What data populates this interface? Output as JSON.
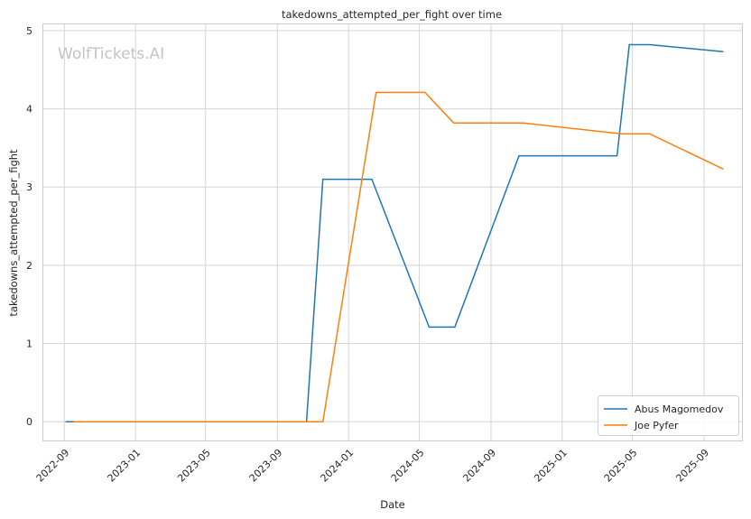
{
  "watermark": "WolfTickets.AI",
  "chart_data": {
    "type": "line",
    "title": "takedowns_attempted_per_fight over time",
    "xlabel": "Date",
    "ylabel": "takedowns_attempted_per_fight",
    "x_ticks": [
      "2022-09",
      "2023-01",
      "2023-05",
      "2023-09",
      "2024-01",
      "2024-05",
      "2024-09",
      "2025-01",
      "2025-05",
      "2025-09"
    ],
    "y_ticks": [
      0,
      1,
      2,
      3,
      4,
      5
    ],
    "xlim": [
      "2022-07-27",
      "2025-11-05"
    ],
    "ylim": [
      -0.24,
      5.08
    ],
    "grid": true,
    "legend_position": "lower-right",
    "series": [
      {
        "name": "Abus Magomedov",
        "color": "#1f77b4",
        "points": [
          {
            "x": "2022-09-03",
            "y": 0
          },
          {
            "x": "2023-10-21",
            "y": 0
          },
          {
            "x": "2023-11-18",
            "y": 3.1
          },
          {
            "x": "2024-02-10",
            "y": 3.1
          },
          {
            "x": "2024-05-18",
            "y": 1.21
          },
          {
            "x": "2024-07-01",
            "y": 1.21
          },
          {
            "x": "2024-10-19",
            "y": 3.4
          },
          {
            "x": "2025-04-05",
            "y": 3.4
          },
          {
            "x": "2025-04-26",
            "y": 4.82
          },
          {
            "x": "2025-05-31",
            "y": 4.82
          },
          {
            "x": "2025-10-04",
            "y": 4.73
          }
        ]
      },
      {
        "name": "Joe Pyfer",
        "color": "#ff7f0e",
        "points": [
          {
            "x": "2022-09-17",
            "y": 0
          },
          {
            "x": "2023-11-18",
            "y": 0
          },
          {
            "x": "2024-02-17",
            "y": 4.21
          },
          {
            "x": "2024-05-11",
            "y": 4.21
          },
          {
            "x": "2024-06-29",
            "y": 3.82
          },
          {
            "x": "2024-10-26",
            "y": 3.82
          },
          {
            "x": "2025-04-12",
            "y": 3.68
          },
          {
            "x": "2025-05-31",
            "y": 3.68
          },
          {
            "x": "2025-10-04",
            "y": 3.23
          }
        ]
      }
    ]
  }
}
